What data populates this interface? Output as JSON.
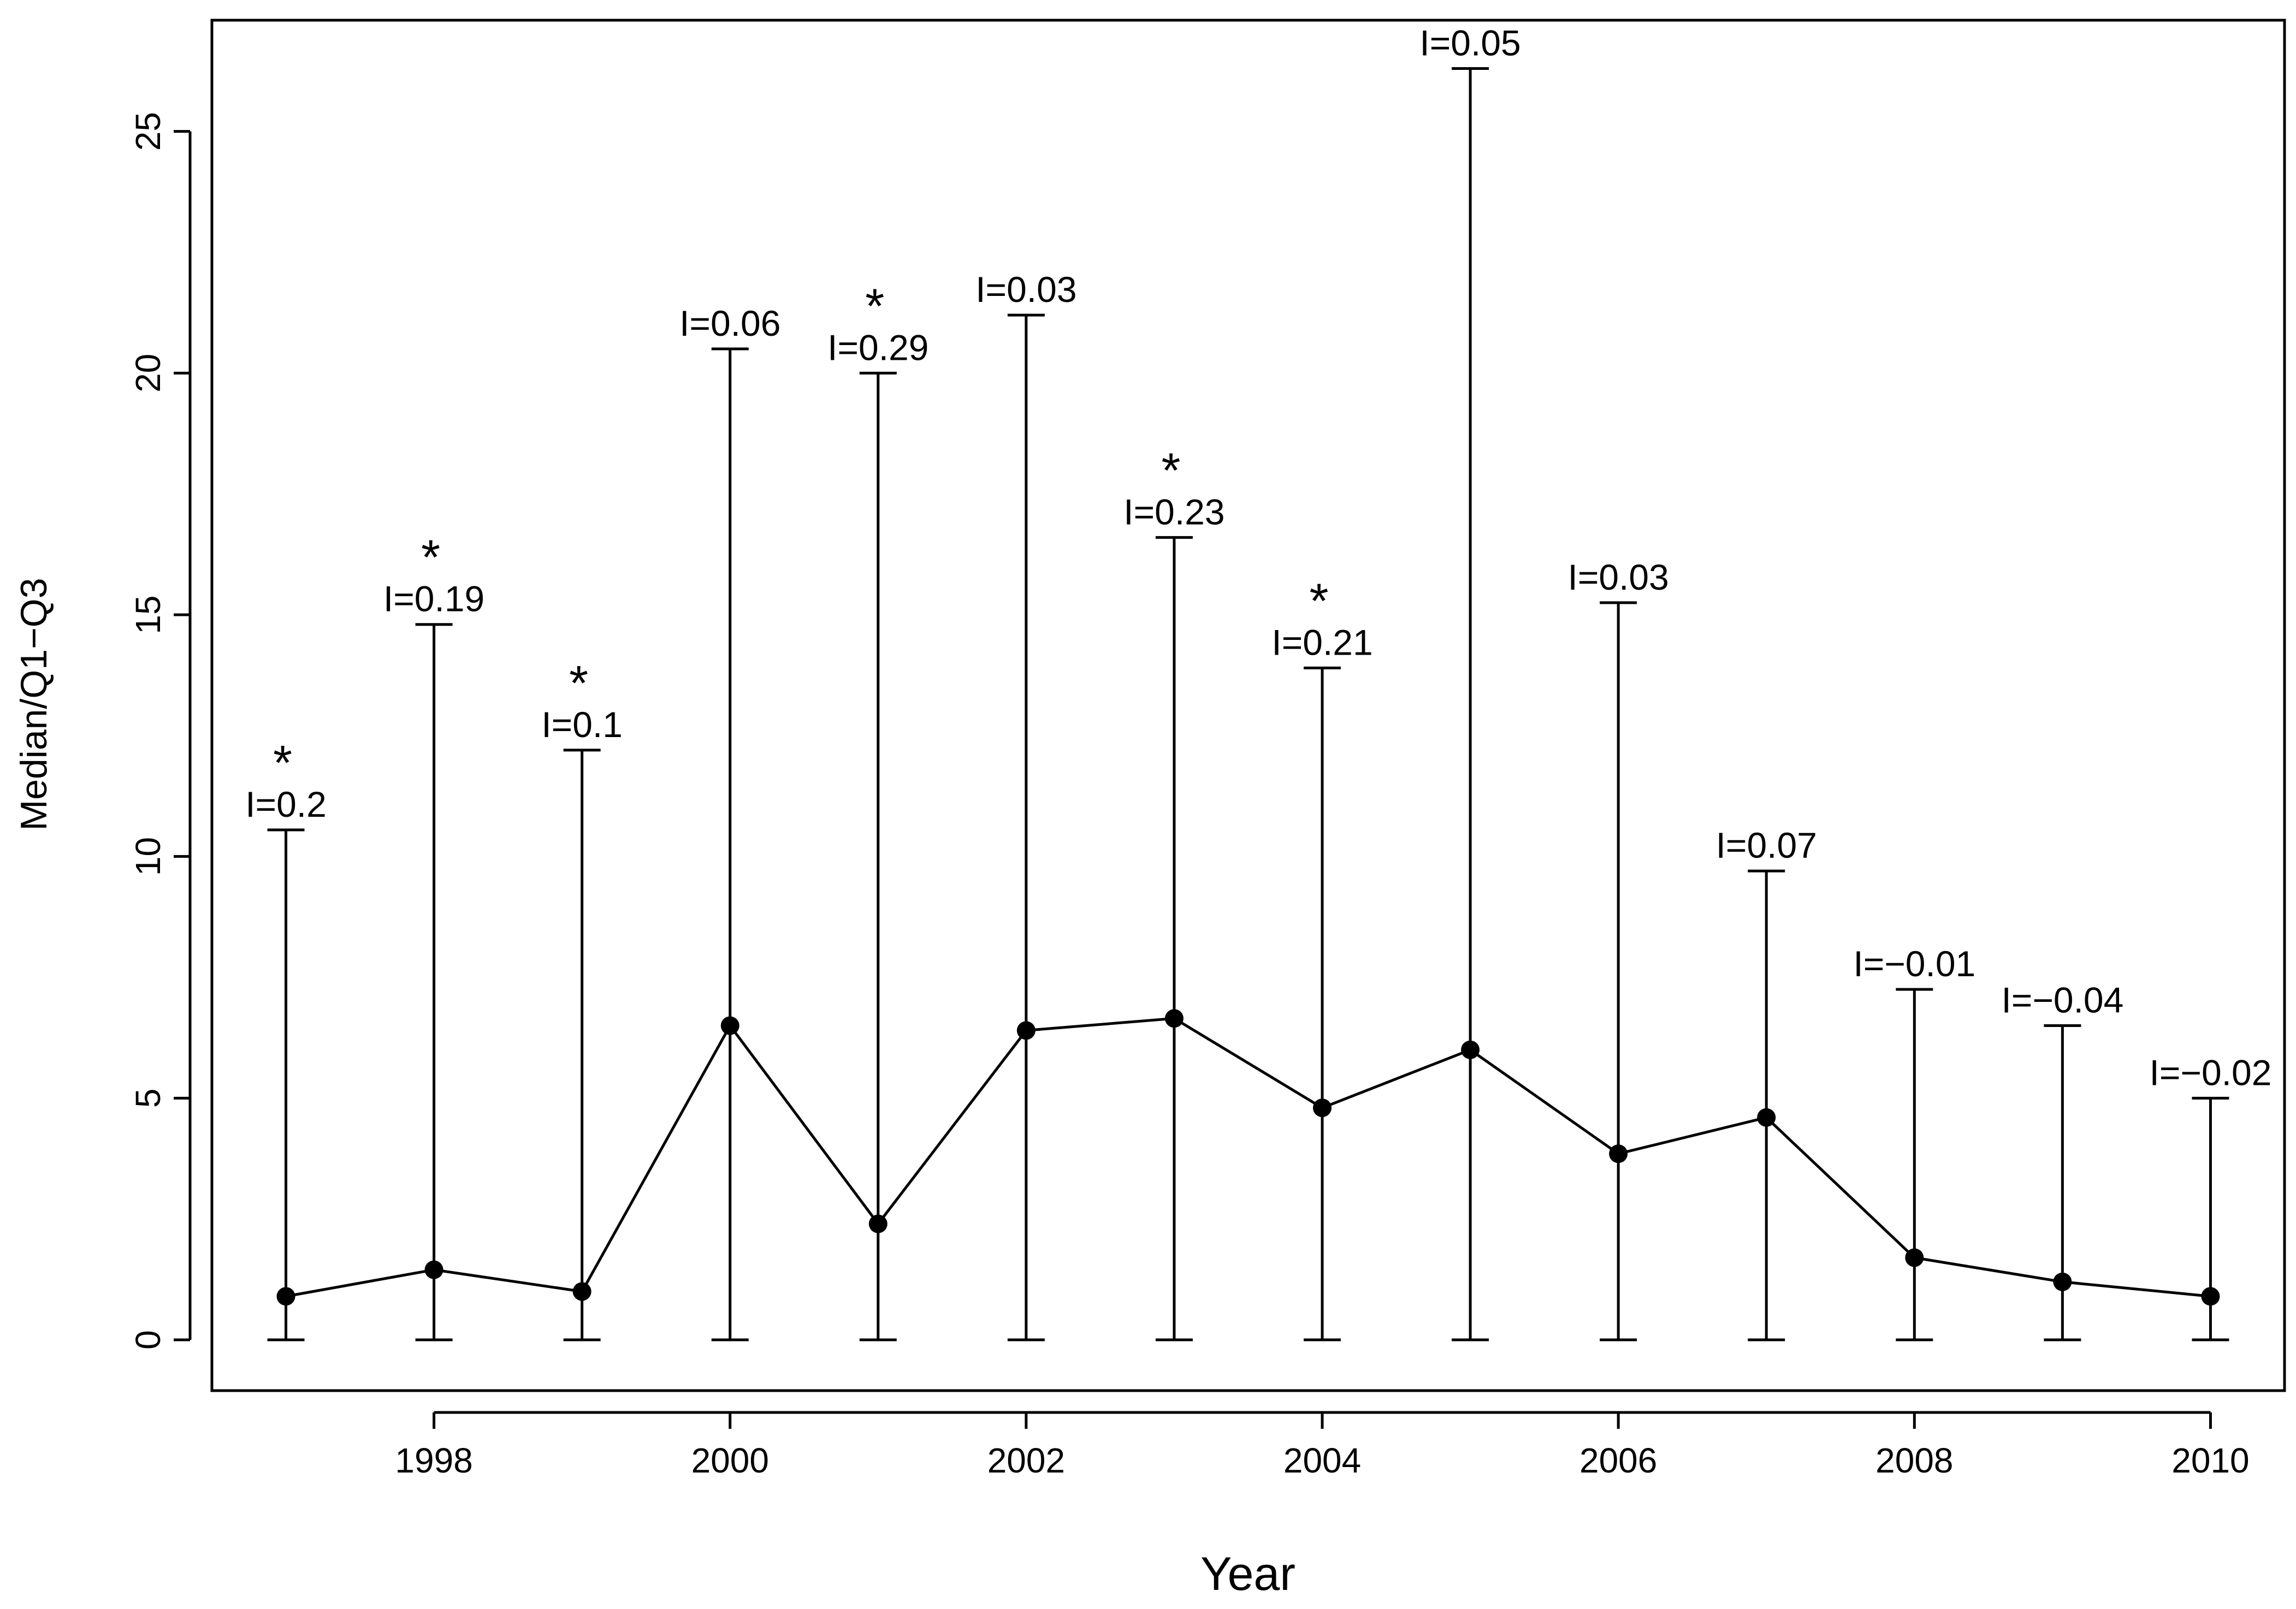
{
  "chart_data": {
    "type": "line",
    "title": "",
    "xlabel": "Year",
    "ylabel": "Median/Q1−Q3",
    "xlim": [
      1996.5,
      2010.5
    ],
    "ylim": [
      -1.05,
      27.3
    ],
    "x_ticks": [
      1998,
      2000,
      2002,
      2004,
      2006,
      2008,
      2010
    ],
    "y_ticks": [
      0,
      5,
      10,
      15,
      20,
      25
    ],
    "grid": false,
    "legend": "none",
    "colors": {
      "line": "#000000",
      "point": "#000000",
      "axis": "#000000"
    },
    "points": [
      {
        "x": 1997,
        "median": 0.9,
        "q1": 0,
        "q3": 10.55,
        "label": "I=0.2",
        "significant": true
      },
      {
        "x": 1998,
        "median": 1.45,
        "q1": 0,
        "q3": 14.8,
        "label": "I=0.19",
        "significant": true
      },
      {
        "x": 1999,
        "median": 1.0,
        "q1": 0,
        "q3": 12.2,
        "label": "I=0.1",
        "significant": true
      },
      {
        "x": 2000,
        "median": 6.5,
        "q1": 0,
        "q3": 20.5,
        "label": "I=0.06",
        "significant": false
      },
      {
        "x": 2001,
        "median": 2.4,
        "q1": 0,
        "q3": 20.0,
        "label": "I=0.29",
        "significant": true
      },
      {
        "x": 2002,
        "median": 6.4,
        "q1": 0,
        "q3": 21.2,
        "label": "I=0.03",
        "significant": false
      },
      {
        "x": 2003,
        "median": 6.65,
        "q1": 0,
        "q3": 16.6,
        "label": "I=0.23",
        "significant": true
      },
      {
        "x": 2004,
        "median": 4.8,
        "q1": 0,
        "q3": 13.9,
        "label": "I=0.21",
        "significant": true
      },
      {
        "x": 2005,
        "median": 6.0,
        "q1": 0,
        "q3": 26.3,
        "label": "I=0.05",
        "significant": false
      },
      {
        "x": 2006,
        "median": 3.85,
        "q1": 0,
        "q3": 15.25,
        "label": "I=0.03",
        "significant": false
      },
      {
        "x": 2007,
        "median": 4.6,
        "q1": 0,
        "q3": 9.7,
        "label": "I=0.07",
        "significant": false
      },
      {
        "x": 2008,
        "median": 1.7,
        "q1": 0,
        "q3": 7.25,
        "label": "I=−0.01",
        "significant": false
      },
      {
        "x": 2009,
        "median": 1.2,
        "q1": 0,
        "q3": 6.5,
        "label": "I=−0.04",
        "significant": false
      },
      {
        "x": 2010,
        "median": 0.9,
        "q1": 0,
        "q3": 5.0,
        "label": "I=−0.02",
        "significant": false
      }
    ],
    "significance_marker": "*"
  }
}
